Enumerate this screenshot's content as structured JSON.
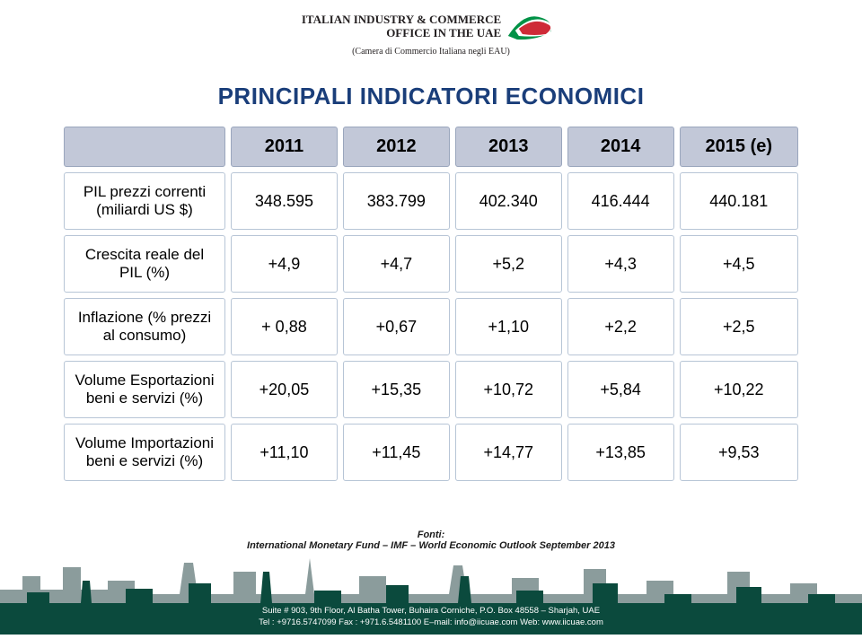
{
  "logo": {
    "line1": "ITALIAN INDUSTRY & COMMERCE",
    "line2": "OFFICE IN THE UAE",
    "subtitle": "(Camera di Commercio Italiana negli EAU)",
    "colors": {
      "green": "#009246",
      "red": "#ce2b37",
      "black": "#231f20"
    }
  },
  "title": {
    "text": "PRINCIPALI INDICATORI ECONOMICI",
    "color": "#1a3e7a",
    "fontsize": 26
  },
  "table": {
    "header_bg": "#c2c8d8",
    "cell_border": "#b7c5d6",
    "years": [
      "2011",
      "2012",
      "2013",
      "2014",
      "2015 (e)"
    ],
    "rows": [
      {
        "label": "PIL prezzi correnti (miliardi US $)",
        "values": [
          "348.595",
          "383.799",
          "402.340",
          "416.444",
          "440.181"
        ]
      },
      {
        "label": "Crescita reale del PIL (%)",
        "values": [
          "+4,9",
          "+4,7",
          "+5,2",
          "+4,3",
          "+4,5"
        ]
      },
      {
        "label": "Inflazione (% prezzi al consumo)",
        "values": [
          "+ 0,88",
          "+0,67",
          "+1,10",
          "+2,2",
          "+2,5"
        ]
      },
      {
        "label": "Volume Esportazioni beni e servizi (%)",
        "values": [
          "+20,05",
          "+15,35",
          "+10,72",
          "+5,84",
          "+10,22"
        ]
      },
      {
        "label": "Volume Importazioni beni e servizi (%)",
        "values": [
          "+11,10",
          "+11,45",
          "+14,77",
          "+13,85",
          "+9,53"
        ]
      }
    ]
  },
  "source": {
    "label": "Fonti:",
    "text": "International Monetary Fund – IMF – World Economic Outlook September 2013"
  },
  "footer": {
    "line1": "Suite # 903, 9th Floor, Al Batha Tower, Buhaira Corniche, P.O. Box 48558 – Sharjah, UAE",
    "line2": "Tel : +9716.5747099  Fax : +971.6.5481100  E–mail: info@iicuae.com  Web: www.iicuae.com",
    "skyline_colors": {
      "back": "#8b9c9c",
      "front": "#0b4a3d"
    }
  }
}
